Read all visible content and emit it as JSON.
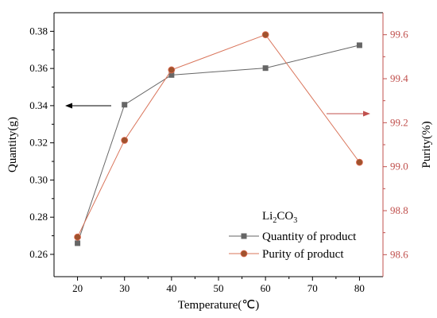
{
  "chart_data": {
    "type": "line",
    "x": [
      20,
      30,
      40,
      60,
      80
    ],
    "xlabel": "Temperature(℃)",
    "ylabel_left": "Quantity(g)",
    "ylabel_right": "Purity(%)",
    "xlim": [
      15,
      85
    ],
    "xticks": [
      20,
      30,
      40,
      50,
      60,
      70,
      80
    ],
    "ylim_left": [
      0.248,
      0.39
    ],
    "yticks_left": [
      0.26,
      0.28,
      0.3,
      0.32,
      0.34,
      0.36,
      0.38
    ],
    "ylim_right": [
      98.5,
      99.7
    ],
    "yticks_right": [
      98.6,
      98.8,
      99.0,
      99.2,
      99.4,
      99.6
    ],
    "legend_title": "Li2CO3",
    "series": [
      {
        "name": "Quantity of product",
        "axis": "left",
        "marker": "square",
        "color": "#666666",
        "values": [
          0.266,
          0.3405,
          0.3565,
          0.3602,
          0.3725
        ]
      },
      {
        "name": "Purity of product",
        "axis": "right",
        "marker": "circle",
        "color": "#a0522d",
        "line_color": "#d9745a",
        "values": [
          98.68,
          99.12,
          99.44,
          99.6,
          99.02
        ]
      }
    ],
    "grid": false,
    "legend_position": "bottom-right",
    "right_axis_color": "#c0504d"
  }
}
